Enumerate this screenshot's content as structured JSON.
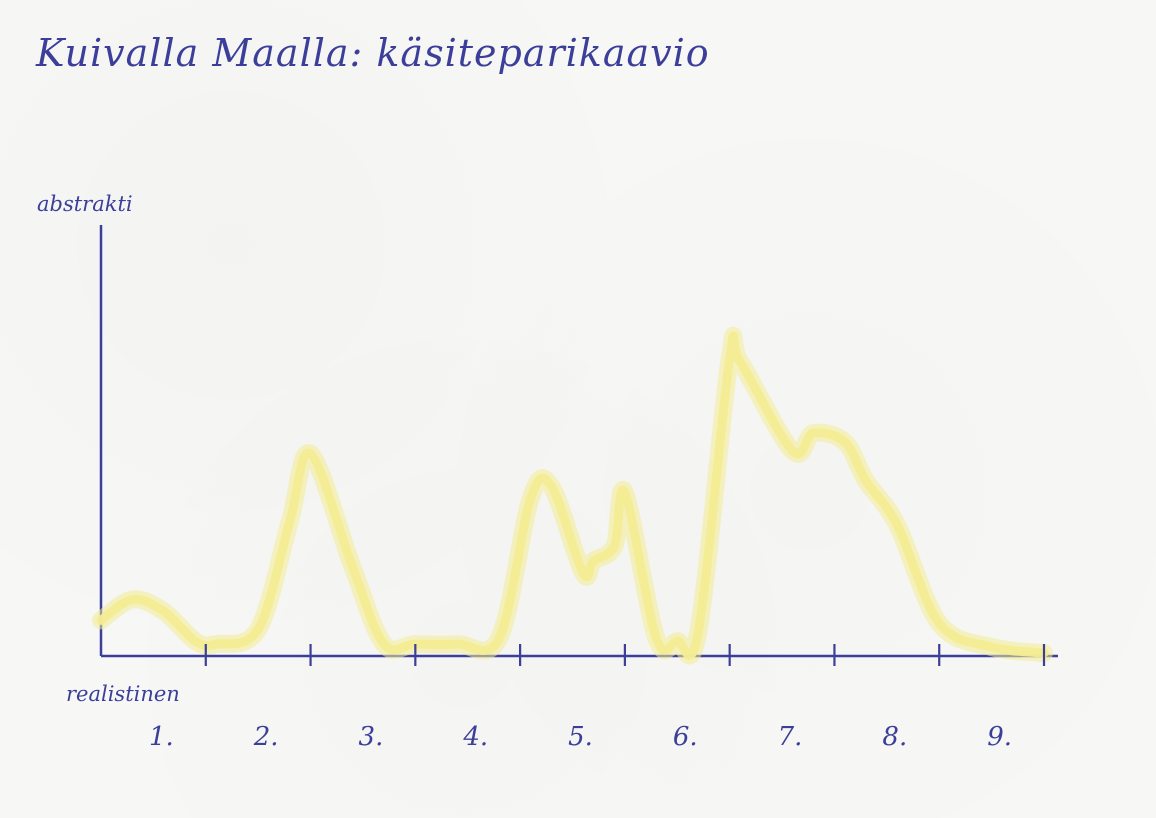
{
  "chart_data": {
    "type": "line",
    "title": "Kuivalla Maalla: käsiteparikaavio",
    "ylabel": "abstrakti",
    "xlabel": "realistinen",
    "categories": [
      "1.",
      "2.",
      "3.",
      "4.",
      "5.",
      "6.",
      "7.",
      "8.",
      "9."
    ],
    "x": [
      0.0,
      0.3,
      0.6,
      0.9,
      1.1,
      1.5,
      1.8,
      2.0,
      2.4,
      2.7,
      3.0,
      3.4,
      3.8,
      4.1,
      4.3,
      4.6,
      4.7,
      4.9,
      5.0,
      5.3,
      5.5,
      5.7,
      6.0,
      6.1,
      6.6,
      6.8,
      7.1,
      7.3,
      7.6,
      8.0,
      8.5,
      9.0
    ],
    "y": [
      0.12,
      0.19,
      0.15,
      0.05,
      0.04,
      0.09,
      0.45,
      0.68,
      0.3,
      0.04,
      0.04,
      0.04,
      0.06,
      0.53,
      0.57,
      0.28,
      0.32,
      0.37,
      0.55,
      0.06,
      0.05,
      0.08,
      1.0,
      0.99,
      0.69,
      0.75,
      0.72,
      0.59,
      0.44,
      0.11,
      0.03,
      0.01
    ],
    "xlim": [
      0,
      9
    ],
    "ylim": [
      0,
      1.45
    ],
    "colors": {
      "ink": "#3b3f9a",
      "highlight": "#f3ec94"
    },
    "grid": false
  }
}
